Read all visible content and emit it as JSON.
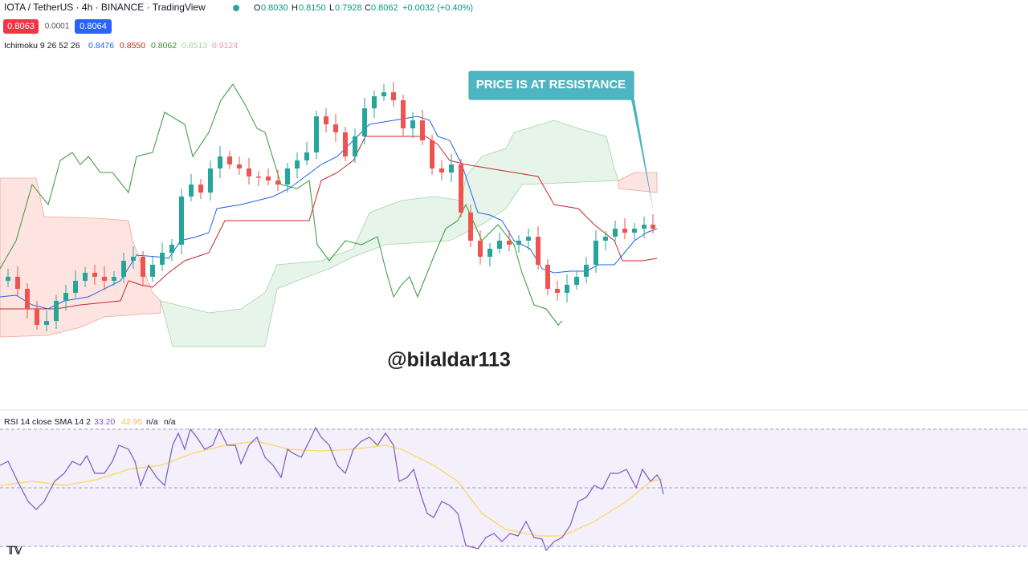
{
  "header": {
    "symbol": "IOTA / TetherUS · 4h · BINANCE · TradingView",
    "ohlc": [
      {
        "label": "O",
        "value": "0.8030"
      },
      {
        "label": "H",
        "value": "0.8150"
      },
      {
        "label": "L",
        "value": "0.7928"
      },
      {
        "label": "C",
        "value": "0.8062"
      }
    ],
    "change": "+0.0032 (+0.40%)",
    "bid": "0.8063",
    "spread": "0.0001",
    "ask": "0.8064"
  },
  "ichimoku": {
    "label": "Ichimoku 9 26 52 26",
    "values": [
      "0.8476",
      "0.8550",
      "0.8062",
      "0.8513",
      "0.9124"
    ]
  },
  "annotation": "PRICE IS AT RESISTANCE",
  "watermark": "@bilaldar113",
  "rsi": {
    "label": "RSI 14 close SMA 14 2",
    "values": [
      "33.20",
      "42.95",
      "n/a",
      "n/a"
    ]
  }
}
